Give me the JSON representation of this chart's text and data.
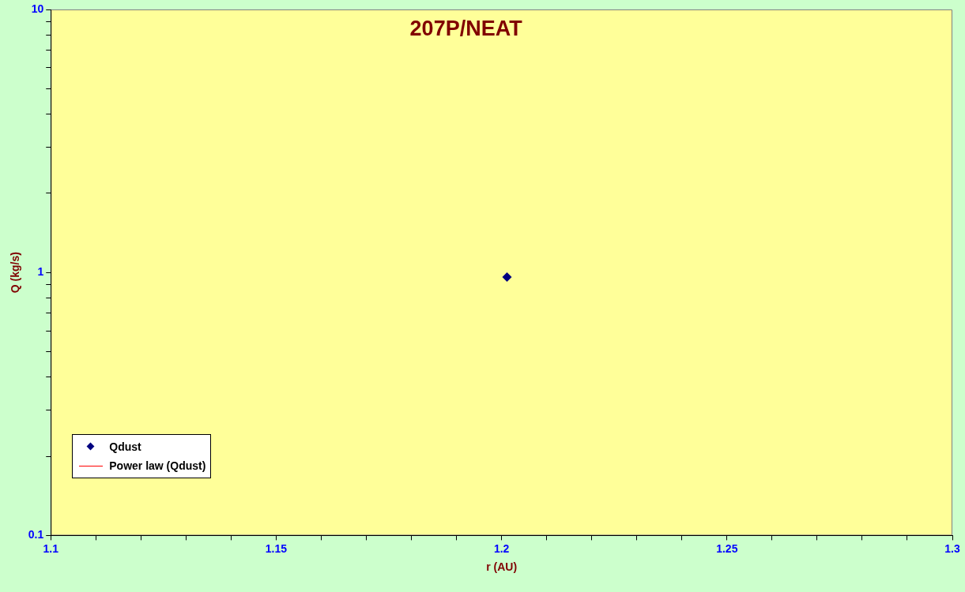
{
  "chart_data": {
    "type": "scatter",
    "title": "207P/NEAT",
    "xlabel": "r (AU)",
    "ylabel": "Q (kg/s)",
    "series": [
      {
        "name": "Qdust",
        "color": "#000080",
        "x": [
          1.2012
        ],
        "values": [
          0.96
        ],
        "marker": "diamond"
      },
      {
        "name": "Power law (Qdust)",
        "type": "line",
        "color": "#ff0000",
        "marker": "none"
      }
    ],
    "xlim": [
      1.1,
      1.3
    ],
    "xticks": [
      1.1,
      {
        "value": 1.11,
        "label": null
      },
      {
        "value": 1.12,
        "label": null
      },
      {
        "value": 1.13,
        "label": null
      },
      {
        "value": 1.14,
        "label": null
      },
      1.15,
      {
        "value": 1.16,
        "label": null
      },
      {
        "value": 1.17,
        "label": null
      },
      {
        "value": 1.18,
        "label": null
      },
      {
        "value": 1.19,
        "label": null
      },
      1.2,
      {
        "value": 1.21,
        "label": null
      },
      {
        "value": 1.22,
        "label": null
      },
      {
        "value": 1.23,
        "label": null
      },
      {
        "value": 1.24,
        "label": null
      },
      1.25,
      {
        "value": 1.26,
        "label": null
      },
      {
        "value": 1.27,
        "label": null
      },
      {
        "value": 1.28,
        "label": null
      },
      {
        "value": 1.29,
        "label": null
      },
      1.3
    ],
    "ylim": [
      0.1,
      10
    ],
    "yticks": [
      0.1,
      {
        "value": 0.2,
        "label": null
      },
      {
        "value": 0.3,
        "label": null
      },
      {
        "value": 0.4,
        "label": null
      },
      {
        "value": 0.5,
        "label": null
      },
      {
        "value": 0.6,
        "label": null
      },
      {
        "value": 0.7,
        "label": null
      },
      {
        "value": 0.8,
        "label": null
      },
      {
        "value": 0.9,
        "label": null
      },
      1,
      {
        "value": 2,
        "label": null
      },
      {
        "value": 3,
        "label": null
      },
      {
        "value": 4,
        "label": null
      },
      {
        "value": 5,
        "label": null
      },
      {
        "value": 6,
        "label": null
      },
      {
        "value": 7,
        "label": null
      },
      {
        "value": 8,
        "label": null
      },
      {
        "value": 9,
        "label": null
      },
      10
    ],
    "log": "y",
    "grid": false,
    "legend": "bottom left"
  }
}
